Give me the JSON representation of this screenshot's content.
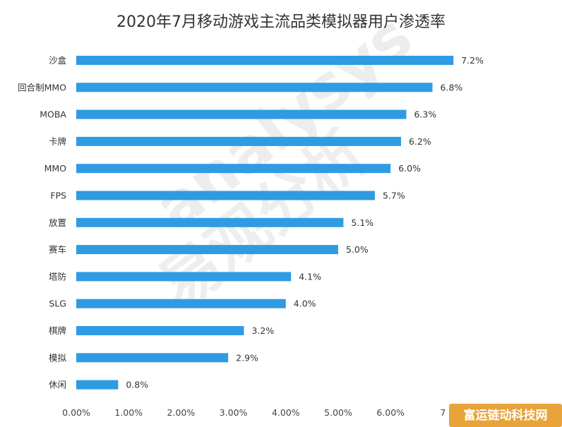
{
  "chart_data": {
    "type": "bar",
    "orientation": "horizontal",
    "title": "2020年7月移动游戏主流品类模拟器用户渗透率",
    "categories": [
      "沙盒",
      "回合制MMO",
      "MOBA",
      "卡牌",
      "MMO",
      "FPS",
      "放置",
      "赛车",
      "塔防",
      "SLG",
      "棋牌",
      "模拟",
      "休闲"
    ],
    "values": [
      7.2,
      6.8,
      6.3,
      6.2,
      6.0,
      5.7,
      5.1,
      5.0,
      4.1,
      4.0,
      3.2,
      2.9,
      0.8
    ],
    "value_labels": [
      "7.2%",
      "6.8%",
      "6.3%",
      "6.2%",
      "6.0%",
      "5.7%",
      "5.1%",
      "5.0%",
      "4.1%",
      "4.0%",
      "3.2%",
      "2.9%",
      "0.8%"
    ],
    "xticks": [
      "0.00%",
      "1.00%",
      "2.00%",
      "3.00%",
      "4.00%",
      "5.00%",
      "6.00%",
      "7"
    ],
    "xlim": [
      0,
      7.5
    ],
    "xlabel": "",
    "ylabel": "",
    "grid": false,
    "legend": false,
    "bar_color": "#2f9be3"
  },
  "watermark": {
    "latin": "analysys",
    "chinese": "易观分析"
  },
  "corner_badge": {
    "text": "富运链动科技网",
    "color": "#e8a33a"
  }
}
